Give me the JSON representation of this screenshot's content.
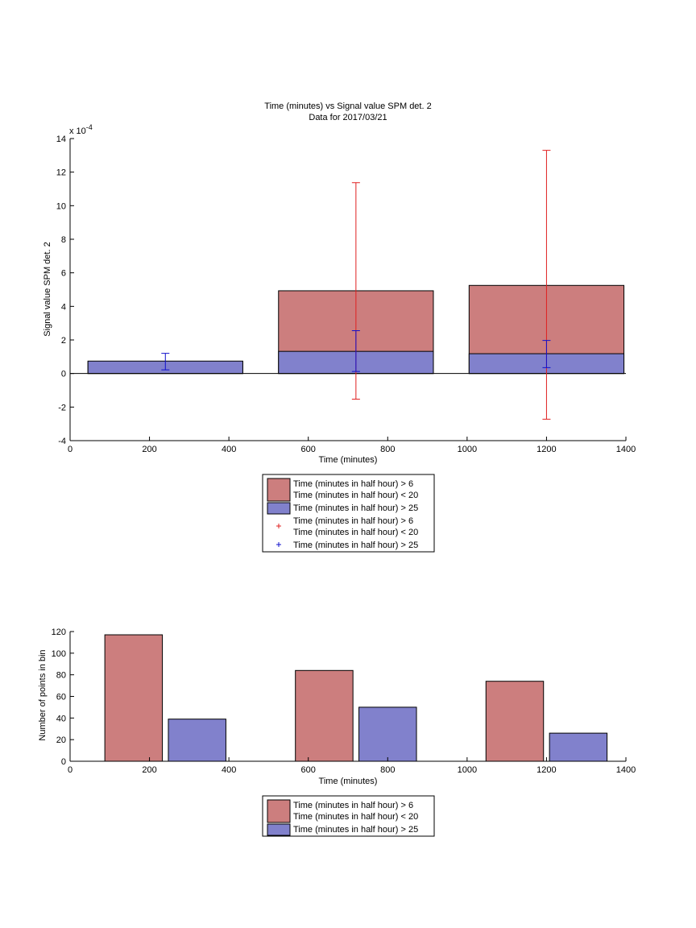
{
  "colors": {
    "red_bar": "#cc7e7e",
    "blue_bar": "#8181cc",
    "red_err": "#e02020",
    "blue_err": "#1010cc"
  },
  "chart_data": [
    {
      "type": "bar",
      "title": "Time (minutes) vs Signal value SPM det. 2",
      "subtitle": "Data for 2017/03/21",
      "xlabel": "Time (minutes)",
      "ylabel": "Signal value SPM det. 2",
      "exponent_label": "x 10",
      "exponent_power": "-4",
      "xlim": [
        0,
        1400
      ],
      "ylim": [
        -4,
        14
      ],
      "x_ticks": [
        0,
        200,
        400,
        600,
        800,
        1000,
        1200,
        1400
      ],
      "y_ticks": [
        -4,
        -2,
        0,
        2,
        4,
        6,
        8,
        10,
        12,
        14
      ],
      "bar_style": "overlaid",
      "bar_width": 390,
      "x": [
        240,
        720,
        1200
      ],
      "series": [
        {
          "name": "Time (minutes in half hour) > 6\nTime (minutes in half hour) < 20",
          "values": [
            0.72,
            4.93,
            5.25
          ]
        },
        {
          "name": "Time (minutes in half hour) > 25",
          "values": [
            0.74,
            1.32,
            1.18
          ]
        }
      ],
      "error_bars": [
        {
          "name": "Time (minutes in half hour) > 6\nTime (minutes in half hour) < 20",
          "center": [
            0.72,
            4.93,
            5.25
          ],
          "lower": [
            0.72,
            -1.53,
            -2.72
          ],
          "upper": [
            0.72,
            11.37,
            13.3
          ]
        },
        {
          "name": "Time (minutes in half hour) > 25",
          "center": [
            0.74,
            1.32,
            1.18
          ],
          "lower": [
            0.22,
            0.12,
            0.35
          ],
          "upper": [
            1.2,
            2.55,
            1.97
          ]
        }
      ],
      "legend": {
        "position": "below",
        "entries": [
          {
            "type": "patch",
            "color": "red_bar",
            "lines": [
              "Time (minutes in half hour) > 6",
              "Time (minutes in half hour) < 20"
            ]
          },
          {
            "type": "patch",
            "color": "blue_bar",
            "lines": [
              "Time (minutes in half hour) > 25"
            ]
          },
          {
            "type": "marker",
            "color": "red_err",
            "lines": [
              "Time (minutes in half hour) > 6",
              "Time (minutes in half hour) < 20"
            ]
          },
          {
            "type": "marker",
            "color": "blue_err",
            "lines": [
              "Time (minutes in half hour) > 25"
            ]
          }
        ]
      }
    },
    {
      "type": "bar",
      "title": "",
      "xlabel": "Time (minutes)",
      "ylabel": "Number of points in bin",
      "xlim": [
        0,
        1400
      ],
      "ylim": [
        0,
        120
      ],
      "x_ticks": [
        0,
        200,
        400,
        600,
        800,
        1000,
        1200,
        1400
      ],
      "y_ticks": [
        0,
        20,
        40,
        60,
        80,
        100,
        120
      ],
      "bar_style": "grouped",
      "bar_width": 145,
      "series": [
        {
          "name": "Time (minutes in half hour) > 6\nTime (minutes in half hour) < 20",
          "x": [
            160,
            640,
            1120
          ],
          "values": [
            117,
            84,
            74
          ]
        },
        {
          "name": "Time (minutes in half hour) > 25",
          "x": [
            320,
            800,
            1280
          ],
          "values": [
            39,
            50,
            26
          ]
        }
      ],
      "legend": {
        "position": "below",
        "entries": [
          {
            "type": "patch",
            "color": "red_bar",
            "lines": [
              "Time (minutes in half hour) > 6",
              "Time (minutes in half hour) < 20"
            ]
          },
          {
            "type": "patch",
            "color": "blue_bar",
            "lines": [
              "Time (minutes in half hour) > 25"
            ]
          }
        ]
      }
    }
  ]
}
